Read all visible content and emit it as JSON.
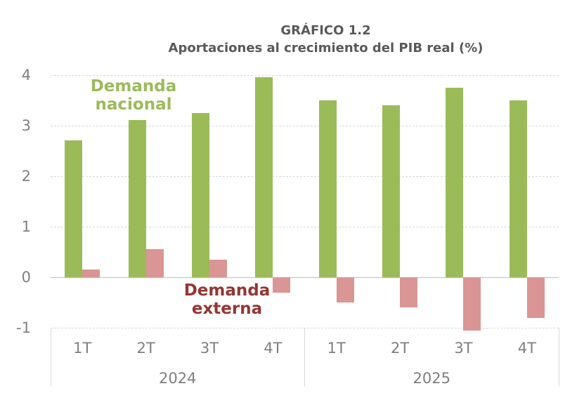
{
  "title": {
    "line1": "GRÁFICO 1.2",
    "line2": "Aportaciones al crecimiento del PIB real (%)"
  },
  "annotations": {
    "national": {
      "text": "Demanda\nnacional",
      "color": "#9BBB59"
    },
    "external": {
      "text": "Demanda\nexterna",
      "color": "#943634"
    }
  },
  "chart_data": {
    "type": "bar",
    "title": "GRÁFICO 1.2",
    "subtitle": "Aportaciones al crecimiento del PIB real (%)",
    "categories": [
      "1T",
      "2T",
      "3T",
      "4T",
      "1T",
      "2T",
      "3T",
      "4T"
    ],
    "year_groups": [
      {
        "label": "2024",
        "span": 4
      },
      {
        "label": "2025",
        "span": 4
      }
    ],
    "series": [
      {
        "name": "Demanda nacional",
        "color": "#9BBB59",
        "values": [
          2.7,
          3.1,
          3.25,
          3.95,
          3.5,
          3.4,
          3.75,
          3.5
        ]
      },
      {
        "name": "Demanda externa",
        "color": "#D99694",
        "values": [
          0.15,
          0.55,
          0.35,
          -0.3,
          -0.5,
          -0.6,
          -1.05,
          -0.8
        ]
      }
    ],
    "yticks": [
      4,
      3,
      2,
      1,
      0,
      -1
    ],
    "ylim": [
      -1.1,
      4.2
    ],
    "grid": "horizontal-dashed",
    "legend": "inline-text-annotations"
  },
  "colors": {
    "background": "#FFFFFF",
    "title_text": "#595959",
    "axis_text": "#7F7F7F",
    "grid": "#D9D9D9",
    "zero_line": "#BFBFBF",
    "separator": "#D9D9D9"
  }
}
